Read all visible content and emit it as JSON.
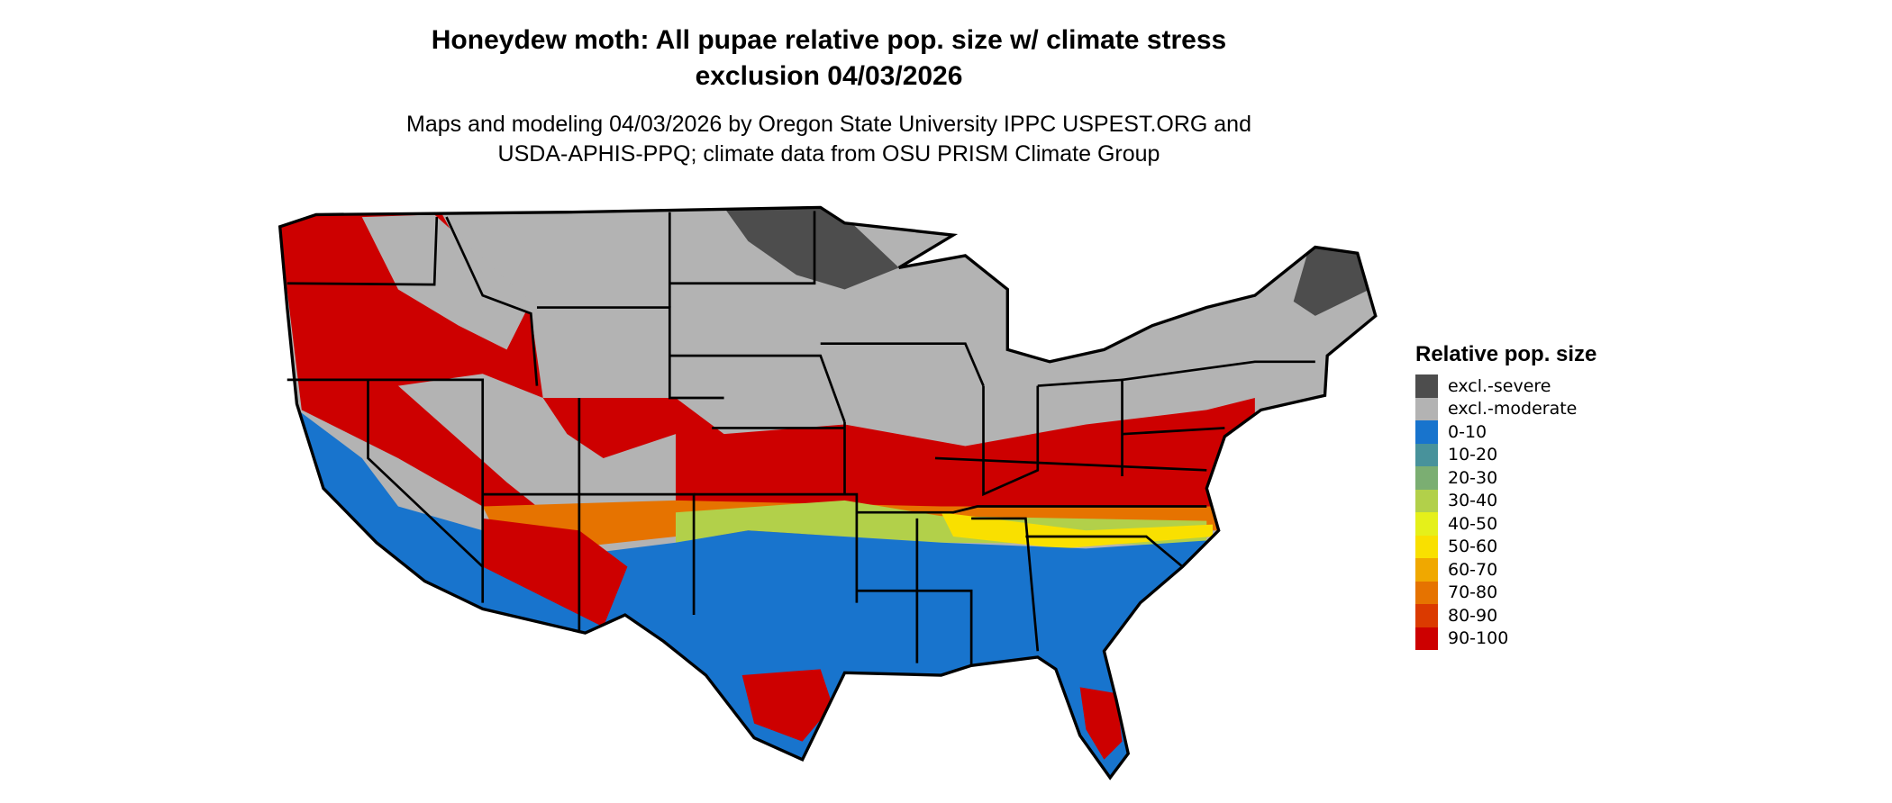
{
  "title_lines": [
    "Honeydew moth: All pupae relative pop. size w/ climate stress",
    "exclusion 04/03/2026"
  ],
  "subtitle_lines": [
    "Maps and modeling 04/03/2026 by Oregon State University IPPC USPEST.ORG and",
    "USDA-APHIS-PPQ; climate data from OSU PRISM Climate Group"
  ],
  "legend": {
    "title": "Relative pop. size",
    "items": [
      {
        "label": "excl.-severe",
        "color": "#4d4d4d"
      },
      {
        "label": "excl.-moderate",
        "color": "#b3b3b3"
      },
      {
        "label": "0-10",
        "color": "#1874cd"
      },
      {
        "label": "10-20",
        "color": "#48929b"
      },
      {
        "label": "20-30",
        "color": "#7bae72"
      },
      {
        "label": "30-40",
        "color": "#b2d04a"
      },
      {
        "label": "40-50",
        "color": "#e5f01a"
      },
      {
        "label": "50-60",
        "color": "#f9e000"
      },
      {
        "label": "60-70",
        "color": "#f0a800"
      },
      {
        "label": "70-80",
        "color": "#e67300"
      },
      {
        "label": "80-90",
        "color": "#db3a00"
      },
      {
        "label": "90-100",
        "color": "#cd0000"
      }
    ]
  },
  "map": {
    "region": "Contiguous United States",
    "border_color": "#000000"
  }
}
